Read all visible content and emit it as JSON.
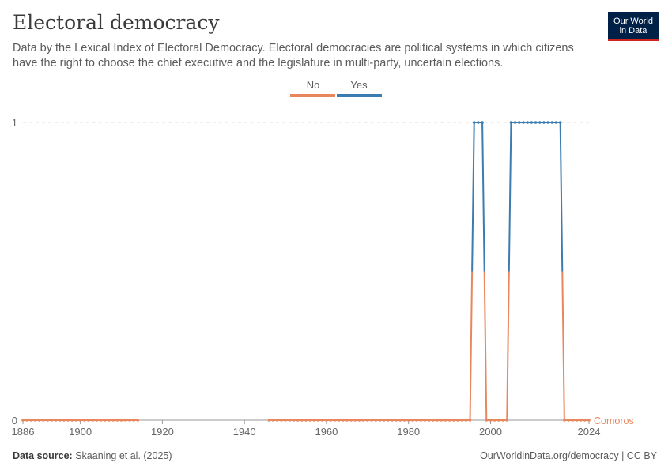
{
  "header": {
    "title": "Electoral democracy",
    "subtitle": "Data by the Lexical Index of Electoral Democracy. Electoral democracies are political systems in which citizens have the right to choose the chief executive and the legislature in multi-party, uncertain elections.",
    "logo_line1": "Our World",
    "logo_line2": "in Data"
  },
  "legend": [
    {
      "label": "No",
      "color": "#e8875e"
    },
    {
      "label": "Yes",
      "color": "#3b7cb1"
    }
  ],
  "footer": {
    "source_label": "Data source:",
    "source_text": "Skaaning et al. (2025)",
    "link_text": "OurWorldinData.org/democracy | CC BY"
  },
  "chart_data": {
    "type": "line",
    "title": "Electoral democracy",
    "xlabel": "",
    "ylabel": "",
    "xlim": [
      1886,
      2024
    ],
    "ylim": [
      0,
      1
    ],
    "x_ticks": [
      1886,
      1900,
      1920,
      1940,
      1960,
      1980,
      2000,
      2024
    ],
    "y_ticks": [
      0,
      1
    ],
    "grid": "horizontal dashed",
    "series": [
      {
        "name": "Comoros",
        "color_no": "#e8875e",
        "color_yes": "#3b7cb1",
        "points": [
          [
            1886,
            0
          ],
          [
            1887,
            0
          ],
          [
            1888,
            0
          ],
          [
            1889,
            0
          ],
          [
            1890,
            0
          ],
          [
            1891,
            0
          ],
          [
            1892,
            0
          ],
          [
            1893,
            0
          ],
          [
            1894,
            0
          ],
          [
            1895,
            0
          ],
          [
            1896,
            0
          ],
          [
            1897,
            0
          ],
          [
            1898,
            0
          ],
          [
            1899,
            0
          ],
          [
            1900,
            0
          ],
          [
            1901,
            0
          ],
          [
            1902,
            0
          ],
          [
            1903,
            0
          ],
          [
            1904,
            0
          ],
          [
            1905,
            0
          ],
          [
            1906,
            0
          ],
          [
            1907,
            0
          ],
          [
            1908,
            0
          ],
          [
            1909,
            0
          ],
          [
            1910,
            0
          ],
          [
            1911,
            0
          ],
          [
            1912,
            0
          ],
          [
            1913,
            0
          ],
          [
            1914,
            0
          ],
          [
            1946,
            0
          ],
          [
            1947,
            0
          ],
          [
            1948,
            0
          ],
          [
            1949,
            0
          ],
          [
            1950,
            0
          ],
          [
            1951,
            0
          ],
          [
            1952,
            0
          ],
          [
            1953,
            0
          ],
          [
            1954,
            0
          ],
          [
            1955,
            0
          ],
          [
            1956,
            0
          ],
          [
            1957,
            0
          ],
          [
            1958,
            0
          ],
          [
            1959,
            0
          ],
          [
            1960,
            0
          ],
          [
            1961,
            0
          ],
          [
            1962,
            0
          ],
          [
            1963,
            0
          ],
          [
            1964,
            0
          ],
          [
            1965,
            0
          ],
          [
            1966,
            0
          ],
          [
            1967,
            0
          ],
          [
            1968,
            0
          ],
          [
            1969,
            0
          ],
          [
            1970,
            0
          ],
          [
            1971,
            0
          ],
          [
            1972,
            0
          ],
          [
            1973,
            0
          ],
          [
            1974,
            0
          ],
          [
            1975,
            0
          ],
          [
            1976,
            0
          ],
          [
            1977,
            0
          ],
          [
            1978,
            0
          ],
          [
            1979,
            0
          ],
          [
            1980,
            0
          ],
          [
            1981,
            0
          ],
          [
            1982,
            0
          ],
          [
            1983,
            0
          ],
          [
            1984,
            0
          ],
          [
            1985,
            0
          ],
          [
            1986,
            0
          ],
          [
            1987,
            0
          ],
          [
            1988,
            0
          ],
          [
            1989,
            0
          ],
          [
            1990,
            0
          ],
          [
            1991,
            0
          ],
          [
            1992,
            0
          ],
          [
            1993,
            0
          ],
          [
            1994,
            0
          ],
          [
            1995,
            0
          ],
          [
            1996,
            1
          ],
          [
            1997,
            1
          ],
          [
            1998,
            1
          ],
          [
            1999,
            0
          ],
          [
            2000,
            0
          ],
          [
            2001,
            0
          ],
          [
            2002,
            0
          ],
          [
            2003,
            0
          ],
          [
            2004,
            0
          ],
          [
            2005,
            1
          ],
          [
            2006,
            1
          ],
          [
            2007,
            1
          ],
          [
            2008,
            1
          ],
          [
            2009,
            1
          ],
          [
            2010,
            1
          ],
          [
            2011,
            1
          ],
          [
            2012,
            1
          ],
          [
            2013,
            1
          ],
          [
            2014,
            1
          ],
          [
            2015,
            1
          ],
          [
            2016,
            1
          ],
          [
            2017,
            1
          ],
          [
            2018,
            0
          ],
          [
            2019,
            0
          ],
          [
            2020,
            0
          ],
          [
            2021,
            0
          ],
          [
            2022,
            0
          ],
          [
            2023,
            0
          ],
          [
            2024,
            0
          ]
        ]
      }
    ]
  }
}
